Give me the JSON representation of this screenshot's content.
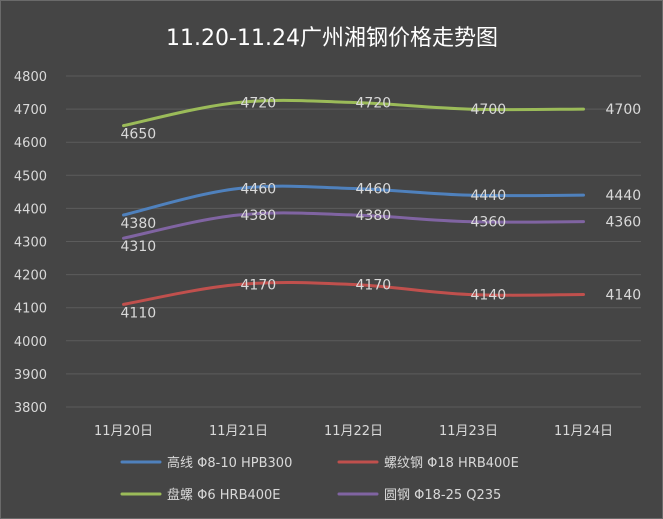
{
  "chart_data": {
    "type": "line",
    "title": "11.20-11.24广州湘钢价格走势图",
    "categories": [
      "11月20日",
      "11月21日",
      "11月22日",
      "11月23日",
      "11月24日"
    ],
    "ylim": [
      3800,
      4800
    ],
    "yticks": [
      3800,
      3900,
      4000,
      4100,
      4200,
      4300,
      4400,
      4500,
      4600,
      4700,
      4800
    ],
    "grid": true,
    "legend_position": "bottom",
    "series": [
      {
        "name": "高线 Φ8-10 HPB300",
        "values": [
          4380,
          4460,
          4460,
          4440,
          4440
        ],
        "color": "#4f81bd"
      },
      {
        "name": "螺纹钢 Φ18 HRB400E",
        "values": [
          4110,
          4170,
          4170,
          4140,
          4140
        ],
        "color": "#c0504d"
      },
      {
        "name": "盘螺 Φ6 HRB400E",
        "values": [
          4650,
          4720,
          4720,
          4700,
          4700
        ],
        "color": "#9bbb59"
      },
      {
        "name": "圆钢 Φ18-25 Q235",
        "values": [
          4310,
          4380,
          4380,
          4360,
          4360
        ],
        "color": "#8064a2"
      }
    ]
  }
}
